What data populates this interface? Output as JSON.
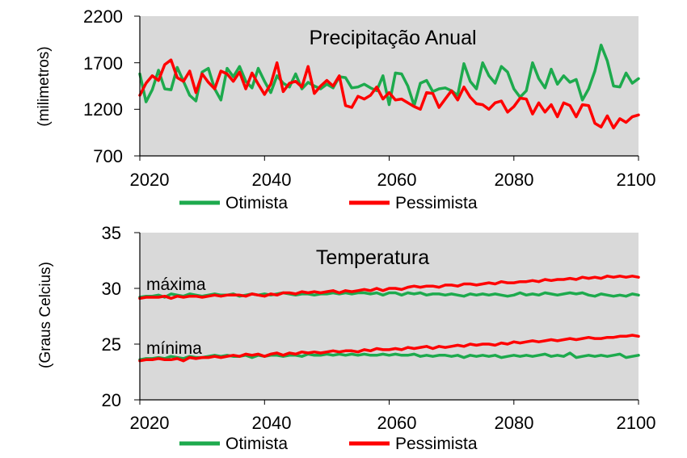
{
  "colors": {
    "otimista": "#1daa4d",
    "pessimista": "#ff0000",
    "plot_bg": "#d9d9d9"
  },
  "chart_data": [
    {
      "type": "line",
      "title": "Precipitação Anual",
      "ylabel": "(milimetros)",
      "xlim": [
        2020,
        2100
      ],
      "ylim": [
        700,
        2200
      ],
      "xticks": [
        "2020",
        "2040",
        "2060",
        "2080",
        "2100"
      ],
      "yticks": [
        "700",
        "1200",
        "1700",
        "2200"
      ],
      "grid": false,
      "legend": "bottom",
      "legend_entries": [
        "Otimista",
        "Pessimista"
      ],
      "x_start": 2020,
      "series": [
        {
          "name": "Otimista",
          "color_key": "otimista",
          "values": [
            1580,
            1280,
            1410,
            1620,
            1420,
            1410,
            1650,
            1500,
            1350,
            1290,
            1600,
            1640,
            1420,
            1300,
            1640,
            1550,
            1660,
            1500,
            1430,
            1640,
            1500,
            1380,
            1560,
            1480,
            1440,
            1580,
            1420,
            1490,
            1450,
            1420,
            1470,
            1430,
            1550,
            1540,
            1430,
            1440,
            1470,
            1430,
            1400,
            1560,
            1250,
            1590,
            1580,
            1450,
            1240,
            1480,
            1510,
            1390,
            1420,
            1430,
            1400,
            1350,
            1690,
            1500,
            1420,
            1700,
            1560,
            1480,
            1660,
            1600,
            1420,
            1330,
            1400,
            1700,
            1530,
            1430,
            1630,
            1470,
            1560,
            1490,
            1520,
            1300,
            1420,
            1610,
            1890,
            1720,
            1450,
            1440,
            1590,
            1480,
            1530
          ]
        },
        {
          "name": "Pessimista",
          "color_key": "pessimista",
          "values": [
            1350,
            1480,
            1560,
            1510,
            1680,
            1730,
            1540,
            1500,
            1610,
            1380,
            1580,
            1490,
            1420,
            1610,
            1580,
            1500,
            1600,
            1420,
            1590,
            1470,
            1360,
            1470,
            1700,
            1390,
            1480,
            1500,
            1440,
            1660,
            1370,
            1450,
            1510,
            1450,
            1560,
            1240,
            1220,
            1340,
            1310,
            1350,
            1440,
            1310,
            1380,
            1300,
            1310,
            1270,
            1230,
            1200,
            1380,
            1370,
            1220,
            1310,
            1400,
            1300,
            1440,
            1330,
            1260,
            1250,
            1200,
            1270,
            1290,
            1170,
            1230,
            1320,
            1310,
            1150,
            1270,
            1170,
            1250,
            1120,
            1270,
            1240,
            1120,
            1250,
            1240,
            1050,
            1010,
            1130,
            1000,
            1100,
            1060,
            1120,
            1140
          ]
        }
      ]
    },
    {
      "type": "line",
      "title": "Temperatura",
      "ylabel": "(Graus Celcius)",
      "xlim": [
        2020,
        2100
      ],
      "ylim": [
        20,
        35
      ],
      "xticks": [
        "2020",
        "2040",
        "2060",
        "2080",
        "2100"
      ],
      "yticks": [
        "20",
        "25",
        "30",
        "35"
      ],
      "grid": false,
      "legend": "bottom",
      "legend_entries": [
        "Otimista",
        "Pessimista"
      ],
      "annotations": [
        "máxima",
        "mínima"
      ],
      "x_start": 2020,
      "series": [
        {
          "name": "Otimista máxima",
          "color_key": "otimista",
          "values": [
            29.2,
            29.3,
            29.3,
            29.4,
            29.2,
            29.5,
            29.4,
            29.3,
            29.5,
            29.4,
            29.3,
            29.4,
            29.5,
            29.4,
            29.4,
            29.5,
            29.3,
            29.4,
            29.5,
            29.4,
            29.5,
            29.4,
            29.5,
            29.6,
            29.5,
            29.4,
            29.5,
            29.5,
            29.4,
            29.5,
            29.5,
            29.6,
            29.5,
            29.6,
            29.5,
            29.6,
            29.6,
            29.5,
            29.6,
            29.4,
            29.6,
            29.6,
            29.4,
            29.6,
            29.5,
            29.6,
            29.4,
            29.5,
            29.5,
            29.4,
            29.5,
            29.4,
            29.3,
            29.5,
            29.4,
            29.5,
            29.4,
            29.5,
            29.4,
            29.3,
            29.4,
            29.6,
            29.4,
            29.5,
            29.4,
            29.6,
            29.5,
            29.4,
            29.5,
            29.6,
            29.5,
            29.6,
            29.4,
            29.3,
            29.5,
            29.4,
            29.3,
            29.4,
            29.3,
            29.5,
            29.4
          ]
        },
        {
          "name": "Pessimista máxima",
          "color_key": "pessimista",
          "values": [
            29.1,
            29.2,
            29.2,
            29.2,
            29.3,
            29.1,
            29.3,
            29.2,
            29.3,
            29.3,
            29.2,
            29.3,
            29.4,
            29.3,
            29.4,
            29.4,
            29.4,
            29.3,
            29.5,
            29.4,
            29.3,
            29.5,
            29.4,
            29.6,
            29.6,
            29.5,
            29.7,
            29.6,
            29.7,
            29.6,
            29.7,
            29.8,
            29.6,
            29.8,
            29.7,
            29.8,
            29.9,
            29.8,
            30.0,
            29.8,
            30.0,
            30.0,
            29.9,
            30.1,
            30.2,
            30.1,
            30.2,
            30.2,
            30.1,
            30.3,
            30.3,
            30.2,
            30.4,
            30.4,
            30.3,
            30.4,
            30.5,
            30.4,
            30.6,
            30.5,
            30.5,
            30.6,
            30.6,
            30.7,
            30.6,
            30.8,
            30.7,
            30.8,
            30.8,
            30.9,
            30.8,
            31.0,
            30.9,
            31.0,
            30.9,
            31.1,
            31.0,
            31.1,
            31.0,
            31.1,
            31.0
          ]
        },
        {
          "name": "Otimista mínima",
          "color_key": "otimista",
          "values": [
            23.6,
            23.7,
            23.7,
            23.8,
            23.7,
            23.9,
            23.8,
            23.7,
            23.9,
            23.8,
            23.8,
            23.9,
            24.0,
            23.9,
            24.0,
            23.9,
            23.9,
            24.0,
            23.8,
            24.0,
            23.9,
            24.0,
            24.0,
            23.9,
            24.0,
            24.0,
            23.9,
            24.1,
            24.0,
            24.0,
            24.1,
            24.0,
            24.1,
            24.0,
            24.1,
            24.0,
            24.1,
            24.0,
            24.0,
            24.1,
            24.0,
            24.1,
            24.0,
            24.0,
            24.1,
            23.9,
            24.0,
            23.9,
            24.0,
            24.0,
            23.9,
            24.0,
            23.8,
            24.0,
            23.9,
            24.0,
            23.9,
            24.0,
            23.8,
            23.9,
            24.0,
            23.9,
            24.0,
            23.9,
            24.0,
            24.1,
            23.9,
            24.0,
            23.9,
            24.2,
            23.8,
            23.9,
            24.0,
            23.9,
            24.0,
            23.9,
            24.0,
            24.1,
            23.8,
            23.9,
            24.0
          ]
        },
        {
          "name": "Pessimista mínima",
          "color_key": "pessimista",
          "values": [
            23.5,
            23.6,
            23.6,
            23.7,
            23.6,
            23.6,
            23.7,
            23.5,
            23.8,
            23.7,
            23.8,
            23.8,
            23.9,
            23.8,
            23.9,
            24.0,
            23.9,
            24.1,
            24.0,
            24.1,
            23.9,
            24.1,
            24.2,
            24.0,
            24.2,
            24.1,
            24.3,
            24.2,
            24.3,
            24.2,
            24.3,
            24.4,
            24.3,
            24.4,
            24.4,
            24.3,
            24.5,
            24.4,
            24.6,
            24.5,
            24.5,
            24.6,
            24.5,
            24.7,
            24.6,
            24.7,
            24.8,
            24.6,
            24.8,
            24.7,
            24.8,
            24.9,
            24.8,
            25.0,
            24.9,
            25.0,
            25.0,
            24.9,
            25.1,
            25.0,
            25.2,
            25.1,
            25.2,
            25.3,
            25.2,
            25.3,
            25.4,
            25.3,
            25.4,
            25.5,
            25.4,
            25.5,
            25.6,
            25.5,
            25.5,
            25.6,
            25.6,
            25.7,
            25.7,
            25.8,
            25.7
          ]
        }
      ]
    }
  ]
}
